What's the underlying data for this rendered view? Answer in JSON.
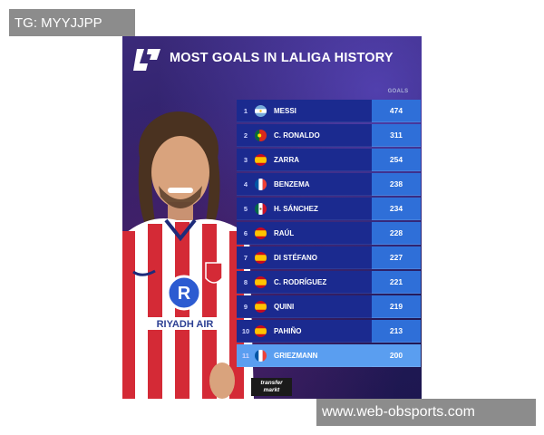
{
  "watermarks": {
    "top": "TG: MYYJJPP",
    "bottom": "www.web-obsports.com"
  },
  "poster": {
    "title": "MOST GOALS IN LALIGA HISTORY",
    "goals_header": "GOALS",
    "jersey_sponsor": "RIYADH AIR",
    "source_logo_line1": "transfer",
    "source_logo_line2": "markt"
  },
  "chart_data": {
    "type": "table",
    "title": "MOST GOALS IN LALIGA HISTORY",
    "columns": [
      "",
      "",
      "GOALS"
    ],
    "rows": [
      {
        "rank": "1",
        "flag": "argentina-flag-icon",
        "name": "MESSI",
        "goals": "474"
      },
      {
        "rank": "2",
        "flag": "portugal-flag-icon",
        "name": "C. RONALDO",
        "goals": "311"
      },
      {
        "rank": "3",
        "flag": "spain-flag-icon",
        "name": "ZARRA",
        "goals": "254"
      },
      {
        "rank": "4",
        "flag": "france-flag-icon",
        "name": "BENZEMA",
        "goals": "238"
      },
      {
        "rank": "5",
        "flag": "mexico-flag-icon",
        "name": "H. SÁNCHEZ",
        "goals": "234"
      },
      {
        "rank": "6",
        "flag": "spain-flag-icon",
        "name": "RAÚL",
        "goals": "228"
      },
      {
        "rank": "7",
        "flag": "spain-flag-icon",
        "name": "DI STÉFANO",
        "goals": "227"
      },
      {
        "rank": "8",
        "flag": "spain-flag-icon",
        "name": "C. RODRÍGUEZ",
        "goals": "221"
      },
      {
        "rank": "9",
        "flag": "spain-flag-icon",
        "name": "QUINI",
        "goals": "219"
      },
      {
        "rank": "10",
        "flag": "spain-flag-icon",
        "name": "PAHIÑO",
        "goals": "213"
      },
      {
        "rank": "11",
        "flag": "france-flag-icon",
        "name": "GRIEZMANN",
        "goals": "200"
      }
    ],
    "highlight_rank": "11"
  },
  "colors": {
    "row_name_bg": "#1b2a8f",
    "row_value_bg": "#2f6fd8",
    "highlight_bg": "#5a9ef0",
    "watermark_bg": "#8c8c8c"
  }
}
